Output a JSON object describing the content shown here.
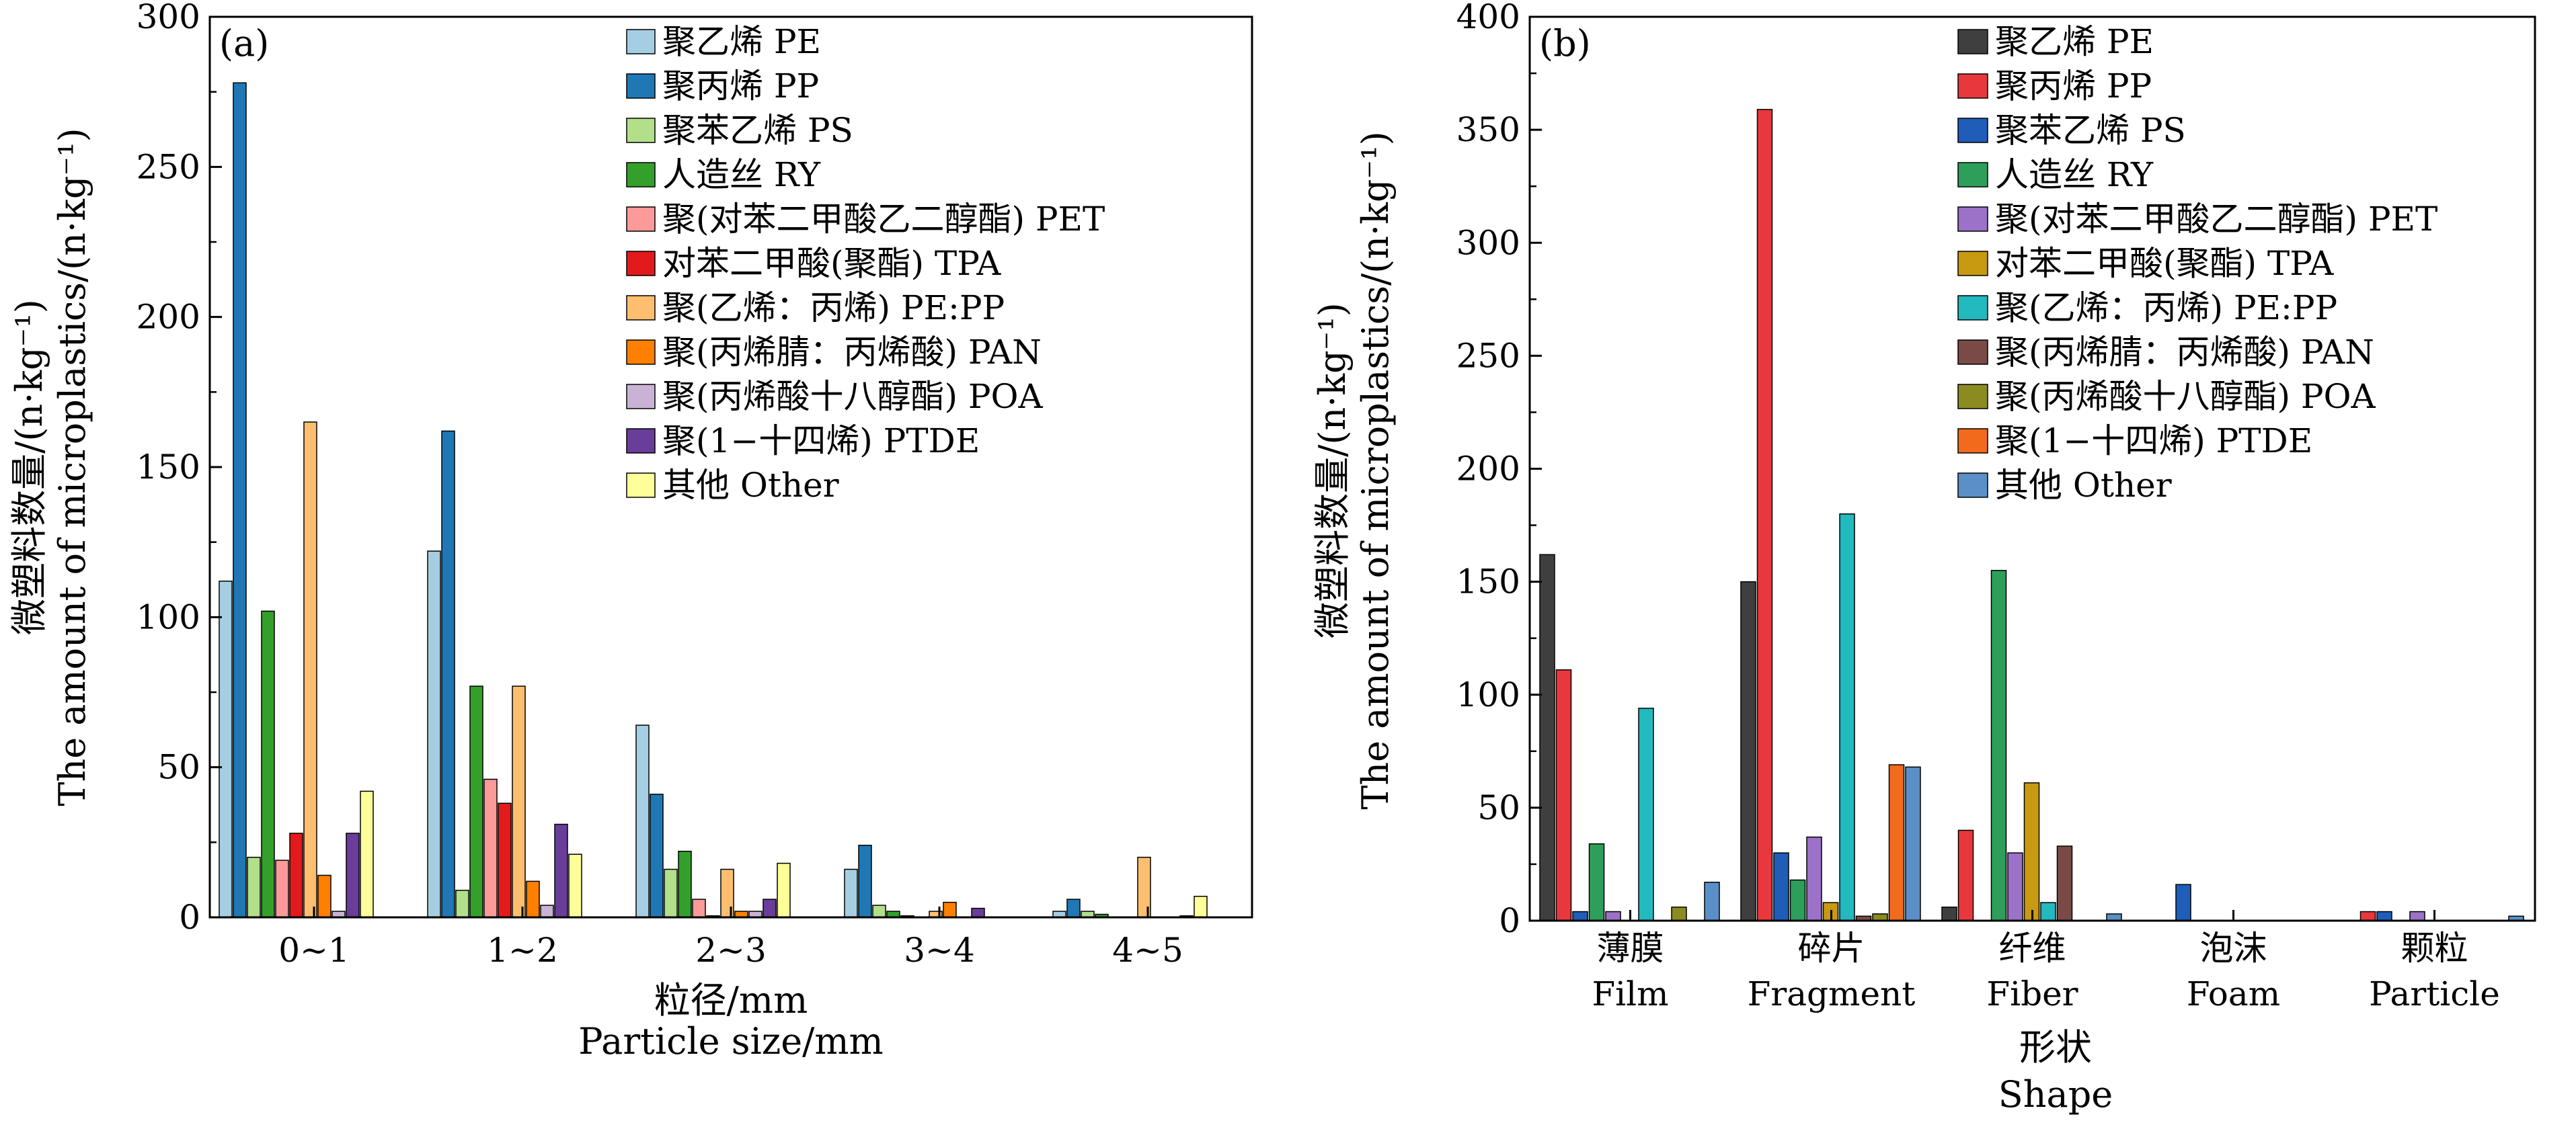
{
  "chart_data": [
    {
      "type": "bar",
      "panel_label": "(a)",
      "xlabel": [
        "粒径/mm",
        "Particle size/mm"
      ],
      "ylabel": [
        "微塑料数量/(n·kg⁻¹)",
        "The amount of microplastics/(n·kg⁻¹)"
      ],
      "ylim": [
        0,
        300
      ],
      "yticks": [
        0,
        50,
        100,
        150,
        200,
        250,
        300
      ],
      "categories": [
        "0~1",
        "1~2",
        "2~3",
        "3~4",
        "4~5"
      ],
      "legend_position": "top-right",
      "series": [
        {
          "name": "聚乙烯 PE",
          "color": "#a6cee3",
          "values": [
            112,
            122,
            64,
            16,
            2
          ]
        },
        {
          "name": "聚丙烯 PP",
          "color": "#1f78b4",
          "values": [
            278,
            162,
            41,
            24,
            6
          ]
        },
        {
          "name": "聚苯乙烯 PS",
          "color": "#b2df8a",
          "values": [
            20,
            9,
            16,
            4,
            2
          ]
        },
        {
          "name": "人造丝 RY",
          "color": "#33a02c",
          "values": [
            102,
            77,
            22,
            2,
            1
          ]
        },
        {
          "name": "聚(对苯二甲酸乙二醇酯) PET",
          "color": "#fb9a99",
          "values": [
            19,
            46,
            6,
            0.5,
            0
          ]
        },
        {
          "name": "对苯二甲酸(聚酯) TPA",
          "color": "#e31a1c",
          "values": [
            28,
            38,
            0.5,
            0,
            0
          ]
        },
        {
          "name": "聚(乙烯：丙烯) PE:PP",
          "color": "#fdbf6f",
          "values": [
            165,
            77,
            16,
            2,
            20
          ]
        },
        {
          "name": "聚(丙烯腈：丙烯酸) PAN",
          "color": "#ff7f00",
          "values": [
            14,
            12,
            2,
            5,
            0
          ]
        },
        {
          "name": "聚(丙烯酸十八醇酯) POA",
          "color": "#cab2d6",
          "values": [
            2,
            4,
            2,
            0,
            0
          ]
        },
        {
          "name": "聚(1−十四烯) PTDE",
          "color": "#6a3d9a",
          "values": [
            28,
            31,
            6,
            3,
            0.5
          ]
        },
        {
          "name": "其他 Other",
          "color": "#ffff99",
          "values": [
            42,
            21,
            18,
            0,
            7
          ]
        }
      ]
    },
    {
      "type": "bar",
      "panel_label": "(b)",
      "xlabel": [
        "形状",
        "Shape"
      ],
      "ylabel": [
        "微塑料数量/(n·kg⁻¹)",
        "The amount of microplastics/(n·kg⁻¹)"
      ],
      "ylim": [
        0,
        400
      ],
      "yticks": [
        0,
        50,
        100,
        150,
        200,
        250,
        300,
        350,
        400
      ],
      "categories": [
        [
          "薄膜",
          "Film"
        ],
        [
          "碎片",
          "Fragment"
        ],
        [
          "纤维",
          "Fiber"
        ],
        [
          "泡沫",
          "Foam"
        ],
        [
          "颗粒",
          "Particle"
        ]
      ],
      "legend_position": "top-right",
      "series": [
        {
          "name": "聚乙烯 PE",
          "color": "#3f3f3f",
          "values": [
            162,
            150,
            6,
            0,
            0
          ]
        },
        {
          "name": "聚丙烯 PP",
          "color": "#e8383d",
          "values": [
            111,
            359,
            40,
            0,
            4
          ]
        },
        {
          "name": "聚苯乙烯 PS",
          "color": "#1f5db8",
          "values": [
            4,
            30,
            0,
            16,
            4
          ]
        },
        {
          "name": "人造丝 RY",
          "color": "#2e9e5b",
          "values": [
            34,
            18,
            155,
            0,
            0
          ]
        },
        {
          "name": "聚(对苯二甲酸乙二醇酯) PET",
          "color": "#9b72c8",
          "values": [
            4,
            37,
            30,
            0,
            4
          ]
        },
        {
          "name": "对苯二甲酸(聚酯) TPA",
          "color": "#c79a12",
          "values": [
            0,
            8,
            61,
            0,
            0
          ]
        },
        {
          "name": "聚(乙烯：丙烯) PE:PP",
          "color": "#22b9bf",
          "values": [
            94,
            180,
            8,
            0,
            0
          ]
        },
        {
          "name": "聚(丙烯腈：丙烯酸) PAN",
          "color": "#7a4b46",
          "values": [
            0,
            2,
            33,
            0,
            0
          ]
        },
        {
          "name": "聚(丙烯酸十八醇酯) POA",
          "color": "#8b8b22",
          "values": [
            6,
            3,
            0,
            0,
            0
          ]
        },
        {
          "name": "聚(1−十四烯) PTDE",
          "color": "#f26b1d",
          "values": [
            0,
            69,
            0,
            0,
            0
          ]
        },
        {
          "name": "其他 Other",
          "color": "#5b8fc7",
          "values": [
            17,
            68,
            3,
            0,
            2
          ]
        }
      ]
    }
  ]
}
